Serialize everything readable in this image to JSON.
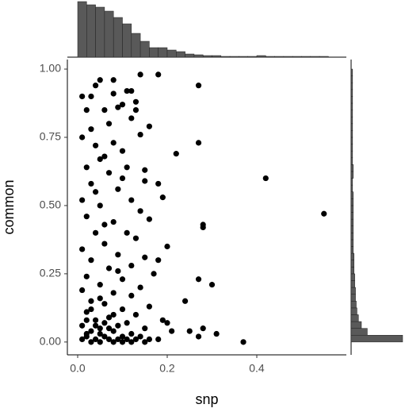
{
  "chart_data": {
    "type": "scatter",
    "x_label": "snp",
    "y_label": "common",
    "color": "#000000",
    "xlim": [
      -0.023,
      0.6
    ],
    "ylim": [
      -0.047,
      1.035
    ],
    "xticks": [
      {
        "value": 0,
        "label": "0.0"
      },
      0.2,
      0.4
    ],
    "yticks": [
      {
        "value": 0,
        "label": "0.00"
      },
      {
        "value": 0.25,
        "label": "0.25"
      },
      {
        "value": 0.5,
        "label": "0.50"
      },
      {
        "value": 0.75,
        "label": "0.75"
      },
      {
        "value": 1,
        "label": "1.00"
      }
    ],
    "x": [
      0.55,
      0.42,
      0.37,
      0.27,
      0.27,
      0.22,
      0.28,
      0.28,
      0.3,
      0.27,
      0.14,
      0.18,
      0.31,
      0.28,
      0.25,
      0.24,
      0.27,
      0.21,
      0.2,
      0.19,
      0.18,
      0.2,
      0.19,
      0.18,
      0.15,
      0.16,
      0.13,
      0.12,
      0.11,
      0.08,
      0.05,
      0.04,
      0.03,
      0.01,
      0.02,
      0.06,
      0.09,
      0.1,
      0.07,
      0.12,
      0.13,
      0.01,
      0.04,
      0.08,
      0.1,
      0.14,
      0.05,
      0.02,
      0.11,
      0.15,
      0.07,
      0.03,
      0.09,
      0.12,
      0.01,
      0.05,
      0.14,
      0.16,
      0.02,
      0.08,
      0.11,
      0.04,
      0.13,
      0.06,
      0.01,
      0.09,
      0.15,
      0.03,
      0.12,
      0.07,
      0.17,
      0.02,
      0.1,
      0.05,
      0.14,
      0.01,
      0.08,
      0.12,
      0.03,
      0.06,
      0.16,
      0.1,
      0.02,
      0.13,
      0.07,
      0.04,
      0.11,
      0.01,
      0.09,
      0.05,
      0.15,
      0.03,
      0.08,
      0.12,
      0.02,
      0.06,
      0.1,
      0.14,
      0.01,
      0.04,
      0.07,
      0.09,
      0.11,
      0.13,
      0.16,
      0.18,
      0.03,
      0.05,
      0.08,
      0.1,
      0.12,
      0.15,
      0.02,
      0.05,
      0.07,
      0.04,
      0.06,
      0.02,
      0.08,
      0.03,
      0.05,
      0.09,
      0.06,
      0.04,
      0.1,
      0.06,
      0.03,
      0.08
    ],
    "y": [
      0.47,
      0.6,
      0.0,
      0.94,
      0.73,
      0.69,
      0.43,
      0.42,
      0.21,
      0.23,
      0.98,
      0.98,
      0.03,
      0.05,
      0.04,
      0.15,
      0.02,
      0.04,
      0.07,
      0.08,
      0.3,
      0.35,
      0.53,
      0.58,
      0.59,
      0.79,
      0.88,
      0.92,
      0.92,
      0.91,
      0.96,
      0.94,
      0.9,
      0.9,
      0.85,
      0.85,
      0.86,
      0.87,
      0.8,
      0.82,
      0.85,
      0.75,
      0.72,
      0.73,
      0.7,
      0.76,
      0.67,
      0.64,
      0.64,
      0.63,
      0.62,
      0.58,
      0.56,
      0.52,
      0.52,
      0.5,
      0.48,
      0.45,
      0.46,
      0.44,
      0.4,
      0.4,
      0.38,
      0.36,
      0.34,
      0.32,
      0.31,
      0.3,
      0.28,
      0.27,
      0.25,
      0.24,
      0.23,
      0.21,
      0.2,
      0.19,
      0.18,
      0.17,
      0.15,
      0.14,
      0.13,
      0.12,
      0.11,
      0.1,
      0.09,
      0.08,
      0.07,
      0.06,
      0.06,
      0.05,
      0.05,
      0.04,
      0.04,
      0.03,
      0.03,
      0.02,
      0.02,
      0.02,
      0.01,
      0.01,
      0.01,
      0.01,
      0.01,
      0.01,
      0.01,
      0.01,
      0.0,
      0.0,
      0.0,
      0.0,
      0.0,
      0.0,
      0.02,
      0.03,
      0.05,
      0.06,
      0.07,
      0.08,
      0.1,
      0.12,
      0.16,
      0.26,
      0.43,
      0.55,
      0.6,
      0.68,
      0.78,
      0.96
    ],
    "top_hist": {
      "color": "#595959",
      "ylim": [
        0,
        70
      ],
      "bins": [
        0,
        0.02,
        0.04,
        0.06,
        0.08,
        0.1,
        0.12,
        0.14,
        0.16,
        0.18,
        0.2,
        0.22,
        0.24,
        0.26,
        0.28,
        0.3,
        0.32,
        0.34,
        0.36,
        0.38,
        0.4,
        0.42,
        0.44,
        0.46,
        0.48,
        0.5,
        0.52,
        0.54,
        0.56
      ],
      "counts": [
        70,
        66,
        63,
        58,
        50,
        42,
        30,
        20,
        12,
        12,
        9,
        7,
        4,
        3,
        2,
        2,
        1,
        1,
        1,
        1,
        2,
        1,
        1,
        1,
        1,
        1,
        1,
        1
      ]
    },
    "right_hist": {
      "color": "#595959",
      "xlim": [
        0,
        70
      ],
      "bins": [
        0,
        0.025,
        0.05,
        0.075,
        0.1,
        0.125,
        0.15,
        0.175,
        0.2,
        0.225,
        0.25,
        0.275,
        0.3,
        0.325,
        0.35,
        0.375,
        0.4,
        0.425,
        0.45,
        0.475,
        0.5,
        0.525,
        0.55,
        0.575,
        0.6,
        0.625,
        0.65,
        0.675,
        0.7,
        0.725,
        0.75,
        0.775,
        0.8,
        0.825,
        0.85,
        0.875,
        0.9,
        0.925,
        0.95,
        0.975,
        1.0
      ],
      "counts": [
        70,
        22,
        14,
        10,
        8,
        7,
        6,
        6,
        5,
        5,
        4,
        4,
        4,
        3,
        3,
        3,
        3,
        3,
        3,
        3,
        3,
        3,
        2,
        2,
        3,
        3,
        2,
        2,
        2,
        2,
        2,
        2,
        2,
        2,
        2,
        2,
        2,
        2,
        2,
        2
      ]
    }
  }
}
